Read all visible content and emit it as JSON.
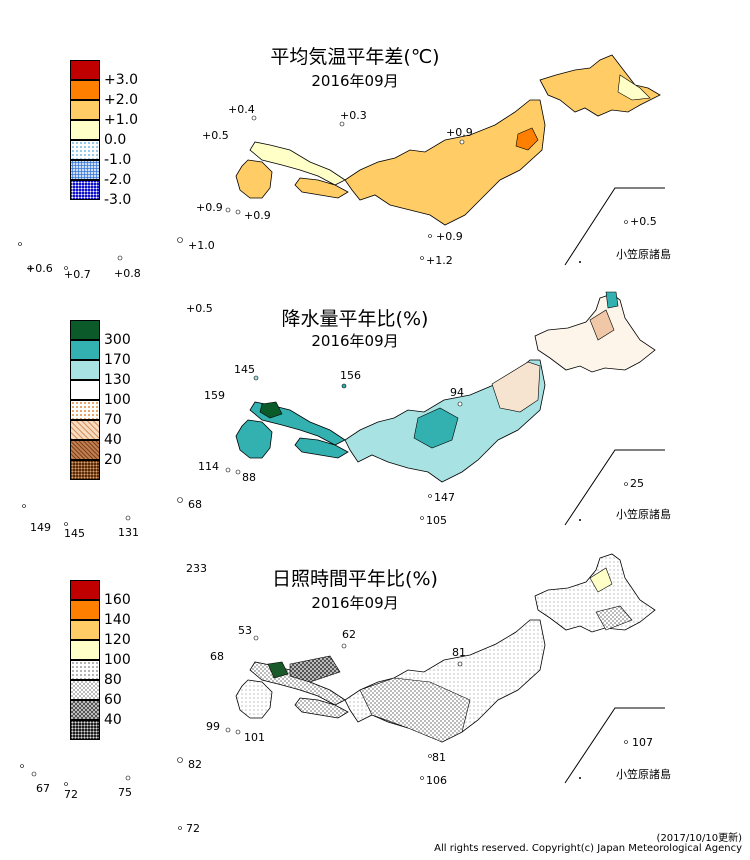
{
  "panels": [
    {
      "title": "平均気温平年差(℃)",
      "subtitle": "2016年09月",
      "legend": [
        {
          "label": "+3.0",
          "color": "#c00000",
          "pattern": "solid"
        },
        {
          "label": "+2.0",
          "color": "#ff8000",
          "pattern": "solid"
        },
        {
          "label": "+1.0",
          "color": "#ffcc66",
          "pattern": "solid"
        },
        {
          "label": "0.0",
          "color": "#ffffc8",
          "pattern": "solid"
        },
        {
          "label": "-1.0",
          "color": "#ffffff",
          "pattern": "dots-light"
        },
        {
          "label": "-2.0",
          "color": "#ffffff",
          "pattern": "dots-blue"
        },
        {
          "label": "-3.0",
          "color": "#2020e0",
          "pattern": "dots-dense"
        },
        {
          "label": "",
          "color": "#0000c0",
          "pattern": "dots-dense"
        }
      ],
      "values": [
        "+0.4",
        "+0.3",
        "+0.5",
        "+0.9",
        "+0.9",
        "+0.9",
        "+0.5",
        "+0.9",
        "+1.2",
        "+1.0",
        "+0.6",
        "+0.7",
        "+0.8",
        "+0.5"
      ],
      "ogasawara": "小笠原諸島",
      "regions": {
        "north": "#ffcc66",
        "hokkaido_east": "#ffcc66",
        "tohoku_spot": "#ff8000",
        "honshu": "#ffcc66",
        "west": "#ffffc8",
        "kyushu": "#ffcc66",
        "shikoku": "#ffffc8"
      }
    },
    {
      "title": "降水量平年比(%)",
      "subtitle": "2016年09月",
      "legend": [
        {
          "label": "300",
          "color": "#0a5a2a",
          "pattern": "solid"
        },
        {
          "label": "170",
          "color": "#33b0b0",
          "pattern": "solid"
        },
        {
          "label": "130",
          "color": "#a8e2e2",
          "pattern": "solid"
        },
        {
          "label": "100",
          "color": "#ffffff",
          "pattern": "solid"
        },
        {
          "label": "70",
          "color": "#ffffff",
          "pattern": "dots-orange"
        },
        {
          "label": "40",
          "color": "#f0c8a8",
          "pattern": "cross-orange"
        },
        {
          "label": "20",
          "color": "#c08050",
          "pattern": "cross-brown"
        },
        {
          "label": "",
          "color": "#603010",
          "pattern": "dots-dense"
        }
      ],
      "values": [
        "145",
        "156",
        "159",
        "94",
        "114",
        "88",
        "147",
        "105",
        "68",
        "149",
        "145",
        "131",
        "25"
      ],
      "ogasawara": "小笠原諸島"
    },
    {
      "title": "日照時間平年比(%)",
      "subtitle": "2016年09月",
      "legend": [
        {
          "label": "160",
          "color": "#c00000",
          "pattern": "solid"
        },
        {
          "label": "140",
          "color": "#ff8000",
          "pattern": "solid"
        },
        {
          "label": "120",
          "color": "#ffcc66",
          "pattern": "solid"
        },
        {
          "label": "100",
          "color": "#ffffc8",
          "pattern": "solid"
        },
        {
          "label": "80",
          "color": "#ffffff",
          "pattern": "dots-light"
        },
        {
          "label": "60",
          "color": "#d8d8d8",
          "pattern": "check"
        },
        {
          "label": "40",
          "color": "#909090",
          "pattern": "check"
        },
        {
          "label": "",
          "color": "#303030",
          "pattern": "dots-dense"
        }
      ],
      "values": [
        "233",
        "53",
        "62",
        "68",
        "81",
        "99",
        "101",
        "81",
        "106",
        "107",
        "67",
        "72",
        "75",
        "82",
        "72"
      ],
      "ogasawara": "小笠原諸島"
    }
  ],
  "footer": {
    "date": "(2017/10/10更新)",
    "copyright": "All rights reserved. Copyright(c) Japan Meteorological Agency"
  }
}
